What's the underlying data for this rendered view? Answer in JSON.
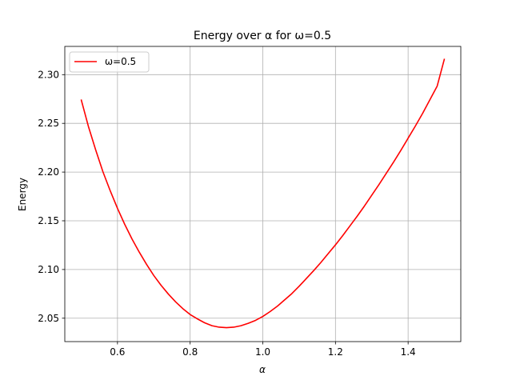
{
  "chart_data": {
    "type": "line",
    "title": "Energy over α for ω=0.5",
    "xlabel": "α",
    "ylabel": "Energy",
    "xlim": [
      0.455,
      1.545
    ],
    "ylim": [
      2.026,
      2.329
    ],
    "xticks": [
      0.6,
      0.8,
      1.0,
      1.2,
      1.4
    ],
    "xtick_labels": [
      "0.6",
      "0.8",
      "1.0",
      "1.2",
      "1.4"
    ],
    "yticks": [
      2.05,
      2.1,
      2.15,
      2.2,
      2.25,
      2.3
    ],
    "ytick_labels": [
      "2.05",
      "2.10",
      "2.15",
      "2.20",
      "2.25",
      "2.30"
    ],
    "grid": true,
    "legend_position": "top-left",
    "series": [
      {
        "name": "ω=0.5",
        "color": "#ff0000",
        "x": [
          0.5,
          0.52,
          0.54,
          0.56,
          0.58,
          0.6,
          0.62,
          0.64,
          0.66,
          0.68,
          0.7,
          0.72,
          0.74,
          0.76,
          0.78,
          0.8,
          0.82,
          0.84,
          0.86,
          0.88,
          0.9,
          0.92,
          0.94,
          0.96,
          0.98,
          1.0,
          1.02,
          1.04,
          1.06,
          1.08,
          1.1,
          1.12,
          1.14,
          1.16,
          1.18,
          1.2,
          1.22,
          1.24,
          1.26,
          1.28,
          1.3,
          1.32,
          1.34,
          1.36,
          1.38,
          1.4,
          1.42,
          1.44,
          1.46,
          1.48,
          1.5
        ],
        "y": [
          2.2745,
          2.2468,
          2.2228,
          2.2003,
          2.1808,
          2.1628,
          2.1463,
          2.1313,
          2.1178,
          2.1053,
          2.0938,
          2.0838,
          2.0748,
          2.0668,
          2.0598,
          2.0538,
          2.0493,
          2.0453,
          2.0423,
          2.0408,
          2.0403,
          2.0408,
          2.0423,
          2.0448,
          2.0478,
          2.0518,
          2.0568,
          2.0623,
          2.0688,
          2.0753,
          2.0828,
          2.0908,
          2.0988,
          2.1073,
          2.1163,
          2.1253,
          2.1348,
          2.1448,
          2.1548,
          2.1653,
          2.1763,
          2.1873,
          2.1988,
          2.2103,
          2.2223,
          2.2348,
          2.2473,
          2.2603,
          2.2743,
          2.2883,
          2.3163
        ]
      }
    ]
  }
}
